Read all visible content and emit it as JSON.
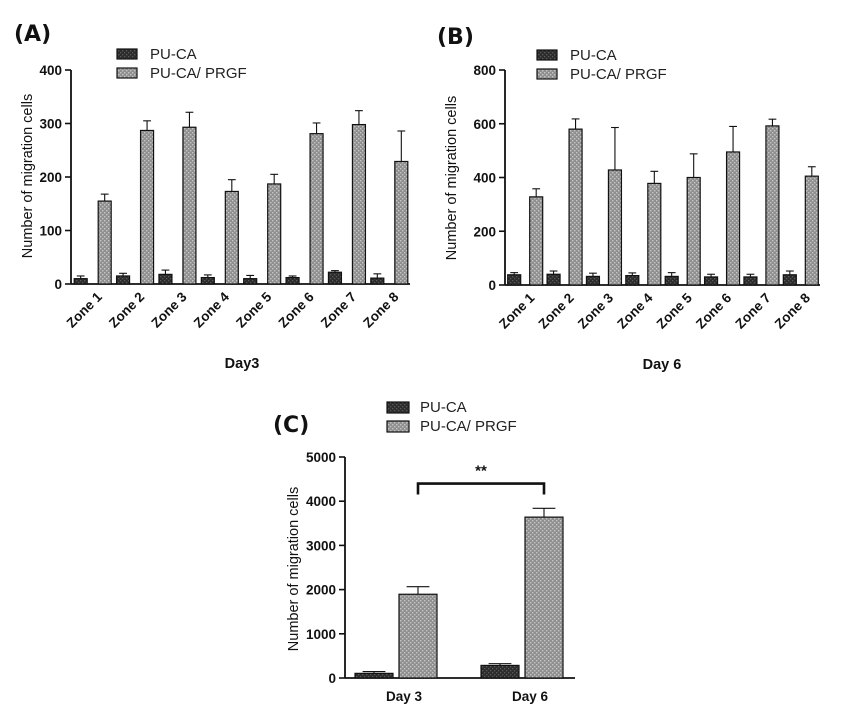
{
  "chart_data": [
    {
      "id": "A",
      "panel_label": "(A)",
      "type": "bar",
      "xlabel": "Day3",
      "ylabel": "Number of migration cells",
      "ylim": [
        0,
        400
      ],
      "yticks": [
        "0",
        "100",
        "200",
        "300",
        "400"
      ],
      "categories": [
        "Zone 1",
        "Zone 2",
        "Zone 3",
        "Zone 4",
        "Zone 5",
        "Zone 6",
        "Zone 7",
        "Zone 8"
      ],
      "legend": [
        "PU-CA",
        "PU-CA/ PRGF"
      ],
      "series": [
        {
          "name": "PU-CA",
          "values": [
            10,
            15,
            18,
            12,
            10,
            12,
            22,
            11
          ],
          "errors": [
            5,
            5,
            8,
            5,
            6,
            3,
            3,
            8
          ]
        },
        {
          "name": "PU-CA/ PRGF",
          "values": [
            155,
            287,
            293,
            173,
            187,
            281,
            298,
            229
          ],
          "errors": [
            13,
            18,
            28,
            22,
            18,
            20,
            26,
            57
          ]
        }
      ]
    },
    {
      "id": "B",
      "panel_label": "(B)",
      "type": "bar",
      "xlabel": "Day 6",
      "ylabel": "Number of migration cells",
      "ylim": [
        0,
        800
      ],
      "yticks": [
        "0",
        "200",
        "400",
        "600",
        "800"
      ],
      "categories": [
        "Zone 1",
        "Zone 2",
        "Zone 3",
        "Zone 4",
        "Zone 5",
        "Zone 6",
        "Zone 7",
        "Zone 8"
      ],
      "legend": [
        "PU-CA",
        "PU-CA/ PRGF"
      ],
      "series": [
        {
          "name": "PU-CA",
          "values": [
            38,
            40,
            32,
            35,
            32,
            30,
            30,
            38
          ],
          "errors": [
            8,
            12,
            12,
            10,
            14,
            10,
            10,
            14
          ]
        },
        {
          "name": "PU-CA/ PRGF",
          "values": [
            328,
            580,
            428,
            378,
            400,
            495,
            592,
            405
          ],
          "errors": [
            30,
            38,
            158,
            45,
            88,
            95,
            25,
            35
          ]
        }
      ]
    },
    {
      "id": "C",
      "panel_label": "(C)",
      "type": "bar",
      "xlabel": "",
      "ylabel": "Number of migration cells",
      "ylim": [
        0,
        5000
      ],
      "yticks": [
        "0",
        "1000",
        "2000",
        "3000",
        "4000",
        "5000"
      ],
      "categories": [
        "Day 3",
        "Day 6"
      ],
      "legend": [
        "PU-CA",
        "PU-CA/ PRGF"
      ],
      "series": [
        {
          "name": "PU-CA",
          "values": [
            105,
            285
          ],
          "errors": [
            40,
            40
          ]
        },
        {
          "name": "PU-CA/ PRGF",
          "values": [
            1895,
            3640
          ],
          "errors": [
            170,
            200
          ]
        }
      ],
      "annotation": {
        "text": "**",
        "from_category": 0,
        "to_category": 1,
        "y": 4400
      }
    }
  ],
  "colors": {
    "dark_bar": "#2d2d2d",
    "light_bar": "#8c8c8c",
    "axis": "#111111"
  }
}
